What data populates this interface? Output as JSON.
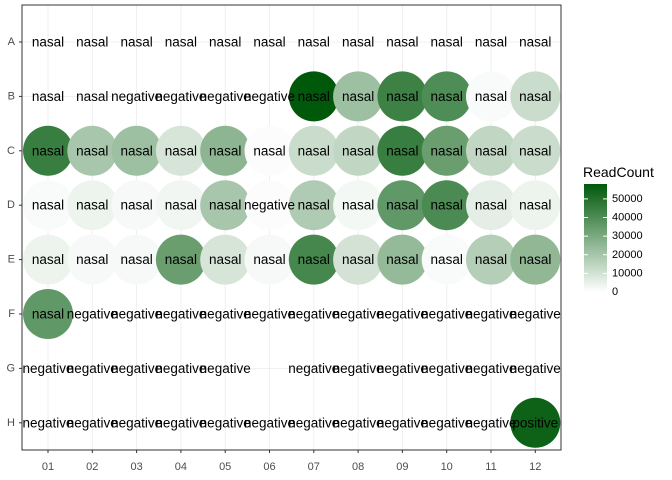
{
  "chart_data": {
    "type": "scatter",
    "rows": [
      "A",
      "B",
      "C",
      "D",
      "E",
      "F",
      "G",
      "H"
    ],
    "columns": [
      "01",
      "02",
      "03",
      "04",
      "05",
      "06",
      "07",
      "08",
      "09",
      "10",
      "11",
      "12"
    ],
    "labels": [
      [
        "nasal",
        "nasal",
        "nasal",
        "nasal",
        "nasal",
        "nasal",
        "nasal",
        "nasal",
        "nasal",
        "nasal",
        "nasal",
        "nasal"
      ],
      [
        "nasal",
        "nasal",
        "negative",
        "negative",
        "negative",
        "negative",
        "nasal",
        "nasal",
        "nasal",
        "nasal",
        "nasal",
        "nasal"
      ],
      [
        "nasal",
        "nasal",
        "nasal",
        "nasal",
        "nasal",
        "nasal",
        "nasal",
        "nasal",
        "nasal",
        "nasal",
        "nasal",
        "nasal"
      ],
      [
        "nasal",
        "nasal",
        "nasal",
        "nasal",
        "nasal",
        "negative",
        "nasal",
        "nasal",
        "nasal",
        "nasal",
        "nasal",
        "nasal"
      ],
      [
        "nasal",
        "nasal",
        "nasal",
        "nasal",
        "nasal",
        "nasal",
        "nasal",
        "nasal",
        "nasal",
        "nasal",
        "nasal",
        "nasal"
      ],
      [
        "nasal",
        "negative",
        "negative",
        "negative",
        "negative",
        "negative",
        "negative",
        "negative",
        "negative",
        "negative",
        "negative",
        "negative"
      ],
      [
        "negative",
        "negative",
        "negative",
        "negative",
        "negative",
        null,
        "negative",
        "negative",
        "negative",
        "negative",
        "negative",
        "negative"
      ],
      [
        "negative",
        "negative",
        "negative",
        "negative",
        "negative",
        "negative",
        "negative",
        "negative",
        "negative",
        "negative",
        "negative",
        "positive"
      ]
    ],
    "read_count": [
      [
        null,
        null,
        null,
        null,
        null,
        null,
        null,
        null,
        null,
        null,
        null,
        null
      ],
      [
        null,
        null,
        null,
        null,
        null,
        null,
        58000,
        22000,
        44000,
        40000,
        1500,
        12000
      ],
      [
        45000,
        20000,
        22000,
        9000,
        26000,
        1000,
        12000,
        14000,
        45000,
        34000,
        14000,
        12000
      ],
      [
        1500,
        4000,
        2000,
        3000,
        20000,
        1000,
        18000,
        2500,
        36000,
        41000,
        6000,
        4000
      ],
      [
        4000,
        2000,
        2000,
        34000,
        9000,
        2000,
        42000,
        10000,
        24000,
        1500,
        17000,
        25000
      ],
      [
        36000,
        null,
        null,
        null,
        null,
        null,
        null,
        null,
        null,
        null,
        null,
        null
      ],
      [
        null,
        null,
        null,
        null,
        null,
        null,
        null,
        null,
        null,
        null,
        null,
        null
      ],
      [
        null,
        null,
        null,
        null,
        null,
        null,
        null,
        null,
        null,
        null,
        null,
        55000
      ]
    ],
    "color_scale": {
      "low": "#ffffff",
      "high": "#00590a",
      "limits": [
        0,
        58000
      ]
    },
    "legend": {
      "title": "ReadCount",
      "breaks": [
        0,
        10000,
        20000,
        30000,
        40000,
        50000
      ],
      "position": "right"
    },
    "grid": true,
    "panel_background": "#ffffff"
  }
}
